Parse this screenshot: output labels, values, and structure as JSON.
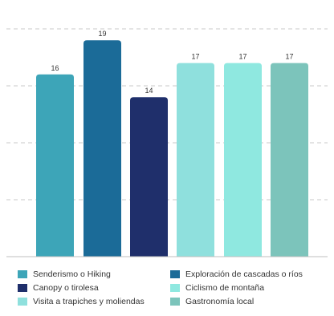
{
  "chart_data": {
    "type": "bar",
    "categories": [
      "Senderismo o Hiking",
      "Exploración de cascadas o ríos",
      "Canopy o tirolesa",
      "Ciclismo de montaña",
      "Visita a trapiches y moliendas",
      "Gastronomía local"
    ],
    "bar_order": [
      "Senderismo o Hiking",
      "Exploración de cascadas o ríos",
      "Canopy o tirolesa",
      "Visita a trapiches y moliendas",
      "Ciclismo de montaña",
      "Gastronomía local"
    ],
    "values_by_bar": [
      16,
      19,
      14,
      17,
      17,
      17
    ],
    "colors_by_bar": [
      "#3da5b8",
      "#1b6b98",
      "#1f2f6b",
      "#8fe0dd",
      "#8fe8e0",
      "#7cc4bb"
    ],
    "legend": [
      {
        "label": "Senderismo o Hiking",
        "color": "#3da5b8"
      },
      {
        "label": "Exploración de cascadas o ríos",
        "color": "#1b6b98"
      },
      {
        "label": "Canopy o tirolesa",
        "color": "#1f2f6b"
      },
      {
        "label": "Ciclismo de montaña",
        "color": "#8fe8e0"
      },
      {
        "label": "Visita a trapiches y moliendas",
        "color": "#8fe0dd"
      },
      {
        "label": "Gastronomía local",
        "color": "#7cc4bb"
      }
    ],
    "data_labels_shown": true,
    "grid": "horizontal dashed",
    "legend_position": "bottom",
    "ylim": [
      0,
      20
    ],
    "title": "",
    "xlabel": "",
    "ylabel": ""
  }
}
